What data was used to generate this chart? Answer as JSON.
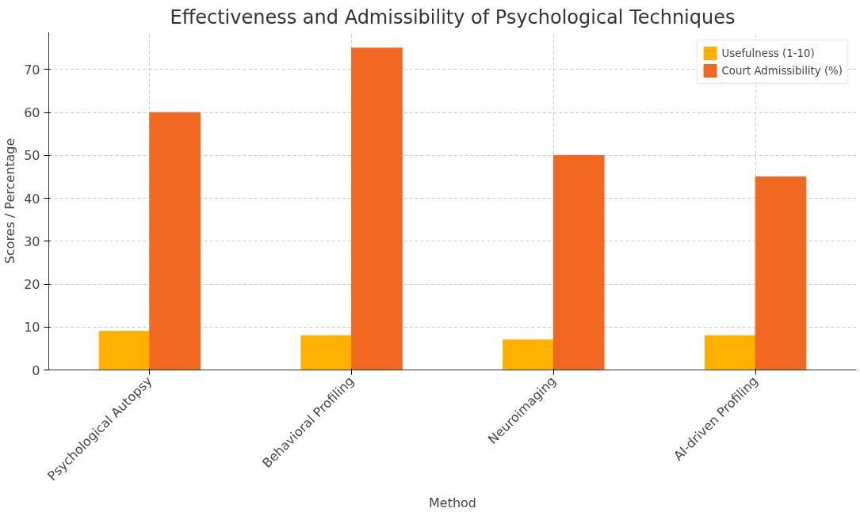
{
  "chart_data": {
    "type": "bar",
    "title": "Effectiveness and Admissibility of Psychological Techniques",
    "xlabel": "Method",
    "ylabel": "Scores / Percentage",
    "categories": [
      "Psychological Autopsy",
      "Behavioral Profiling",
      "Neuroimaging",
      "AI-driven Profiling"
    ],
    "series": [
      {
        "name": "Usefulness (1-10)",
        "color": "#ffb000",
        "values": [
          9,
          8,
          7,
          8
        ]
      },
      {
        "name": "Court Admissibility (%)",
        "color": "#f26822",
        "values": [
          60,
          75,
          50,
          45
        ]
      }
    ],
    "ylim": [
      0,
      78.75
    ],
    "yticks": [
      0,
      10,
      20,
      30,
      40,
      50,
      60,
      70
    ],
    "grid": true,
    "legend": "top right"
  }
}
